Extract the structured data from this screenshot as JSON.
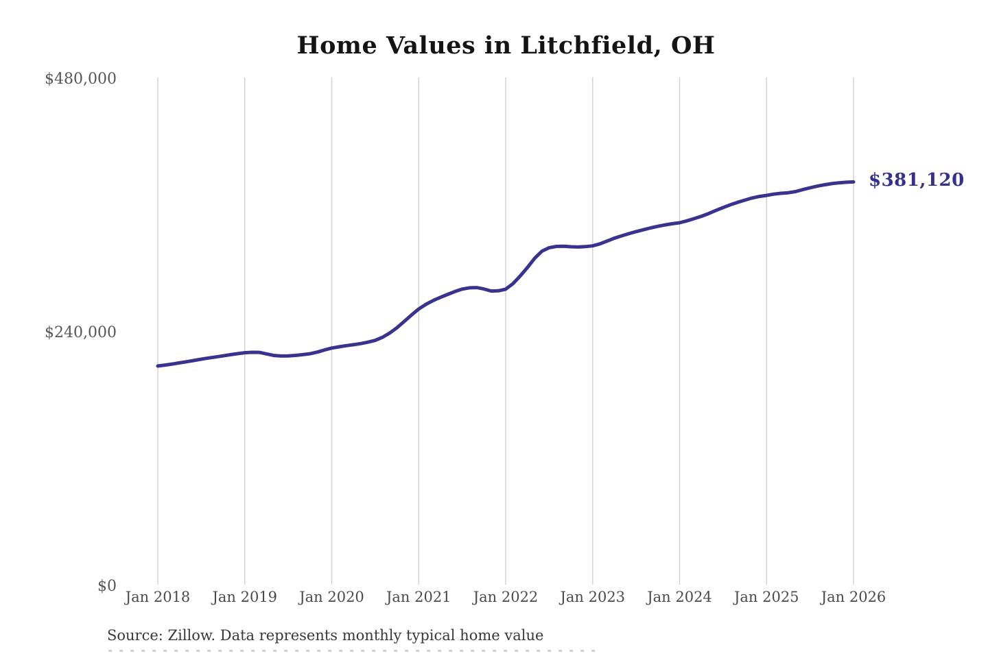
{
  "title": "Home Values in Litchfield, OH",
  "annotation": {
    "label": "$381,120"
  },
  "source_note": "Source: Zillow. Data represents monthly typical home value",
  "colors": {
    "line": "#393390",
    "annotation": "#333090",
    "gridline": "#cccccc",
    "y_tick_label": "#565656",
    "x_tick_label": "#4a4a4a",
    "title": "#141414",
    "source": "#383838",
    "background": "#ffffff"
  },
  "chart_data": {
    "type": "line",
    "title": "Home Values in Litchfield, OH",
    "series_name": "Monthly typical home value",
    "x_unit": "month",
    "x_start": "2018-01",
    "x_end": "2026-01",
    "x_tick_labels": [
      "Jan 2018",
      "Jan 2019",
      "Jan 2020",
      "Jan 2021",
      "Jan 2022",
      "Jan 2023",
      "Jan 2024",
      "Jan 2025",
      "Jan 2026"
    ],
    "y_ticks": [
      {
        "label": "$480,000",
        "value": 480000
      },
      {
        "label": "$240,000",
        "value": 240000
      },
      {
        "label": "$0",
        "value": 0
      }
    ],
    "ylim": [
      0,
      480000
    ],
    "grid": "vertical-only",
    "legend": "none",
    "final_value_label": "$381,120",
    "values": [
      206900,
      207800,
      208800,
      209900,
      211000,
      212200,
      213400,
      214500,
      215500,
      216500,
      217600,
      218600,
      219500,
      219900,
      219800,
      218400,
      216900,
      216400,
      216500,
      217000,
      217700,
      218500,
      220100,
      222100,
      223900,
      225100,
      226200,
      227100,
      228100,
      229500,
      231200,
      234100,
      238100,
      243200,
      249100,
      255200,
      260900,
      265300,
      268900,
      271900,
      274700,
      277400,
      279700,
      280900,
      281100,
      279800,
      277900,
      278100,
      279600,
      284800,
      292000,
      300100,
      308900,
      315600,
      318900,
      320100,
      320300,
      319800,
      319500,
      319900,
      320600,
      322500,
      325200,
      327900,
      330100,
      332200,
      334100,
      335900,
      337600,
      339100,
      340500,
      341600,
      342500,
      344300,
      346400,
      348600,
      351200,
      354100,
      356900,
      359500,
      361800,
      363900,
      365900,
      367400,
      368400,
      369600,
      370400,
      370900,
      372000,
      373900,
      375600,
      377100,
      378400,
      379500,
      380300,
      380800,
      381120
    ]
  }
}
